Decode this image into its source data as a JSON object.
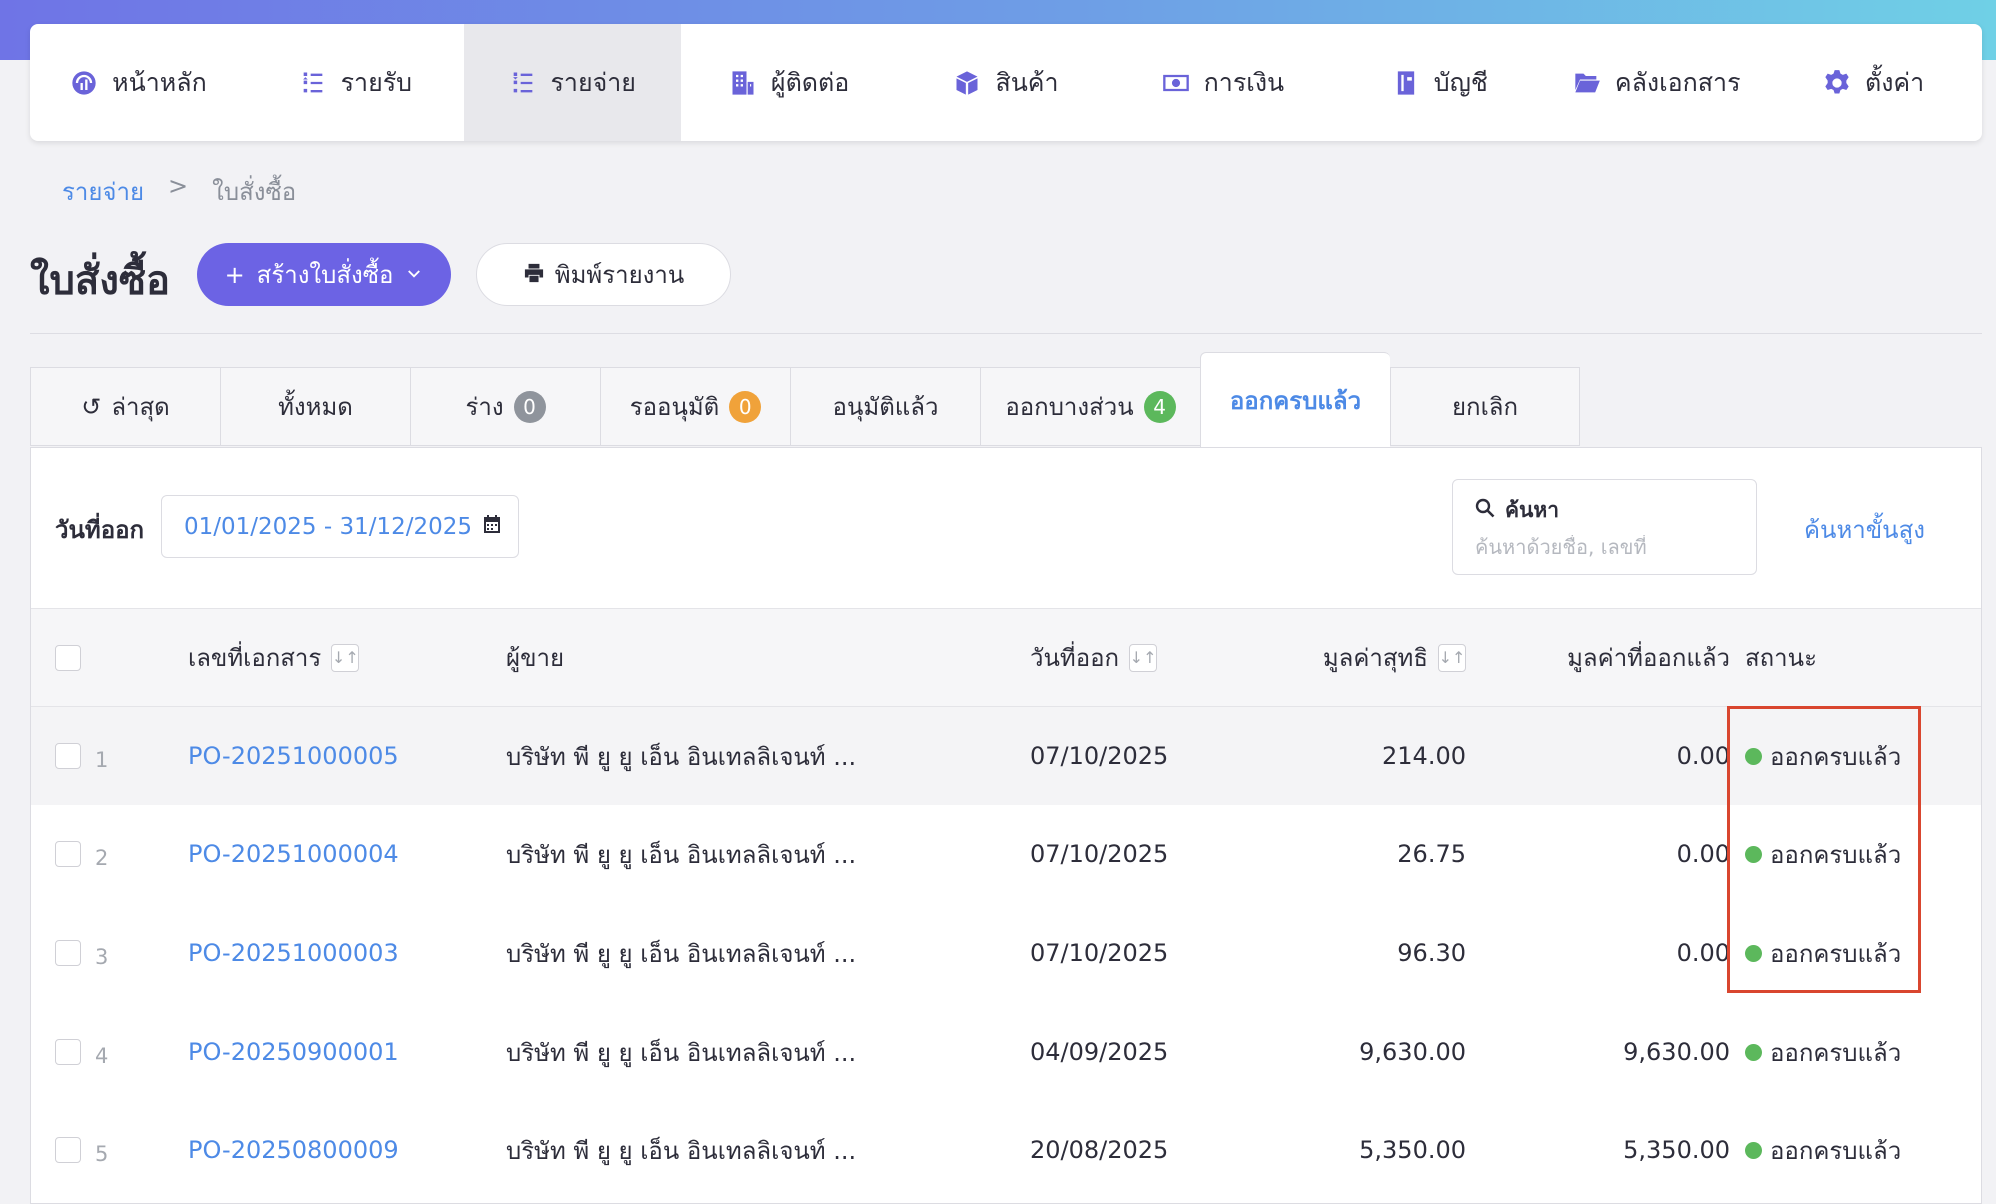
{
  "nav": {
    "items": [
      {
        "label": "หน้าหลัก",
        "icon": "dashboard-gauge-icon"
      },
      {
        "label": "รายรับ",
        "icon": "income-list-icon"
      },
      {
        "label": "รายจ่าย",
        "icon": "expense-list-icon"
      },
      {
        "label": "ผู้ติดต่อ",
        "icon": "contacts-building-icon"
      },
      {
        "label": "สินค้า",
        "icon": "product-box-icon"
      },
      {
        "label": "การเงิน",
        "icon": "money-bill-icon"
      },
      {
        "label": "บัญชี",
        "icon": "account-book-icon"
      },
      {
        "label": "คลังเอกสาร",
        "icon": "folder-open-icon"
      },
      {
        "label": "ตั้งค่า",
        "icon": "gear-icon"
      }
    ],
    "active_index": 2
  },
  "breadcrumb": {
    "parent": "รายจ่าย",
    "separator": ">",
    "current": "ใบสั่งซื้อ"
  },
  "page": {
    "title": "ใบสั่งซื้อ"
  },
  "actions": {
    "create_label": "สร้างใบสั่งซื้อ",
    "print_label": "พิมพ์รายงาน"
  },
  "tabs": [
    {
      "label": "ล่าสุด",
      "icon": "history-icon"
    },
    {
      "label": "ทั้งหมด"
    },
    {
      "label": "ร่าง",
      "badge": "0",
      "badge_color": "#8f949c"
    },
    {
      "label": "รออนุมัติ",
      "badge": "0",
      "badge_color": "#f0a23a"
    },
    {
      "label": "อนุมัติแล้ว"
    },
    {
      "label": "ออกบางส่วน",
      "badge": "4",
      "badge_color": "#5cb85c"
    },
    {
      "label": "ออกครบแล้ว",
      "active": true
    },
    {
      "label": "ยกเลิก"
    }
  ],
  "filters": {
    "date_label": "วันที่ออก",
    "date_range": "01/01/2025 - 31/12/2025",
    "search_label": "ค้นหา",
    "search_placeholder": "ค้นหาด้วยชื่อ, เลขที่",
    "advanced_search": "ค้นหาขั้นสูง"
  },
  "table": {
    "headers": {
      "doc_no": "เลขที่เอกสาร",
      "vendor": "ผู้ขาย",
      "issue_date": "วันที่ออก",
      "net_value": "มูลค่าสุทธิ",
      "issued_value": "มูลค่าที่ออกแล้ว",
      "status": "สถานะ"
    },
    "rows": [
      {
        "index": "1",
        "doc_no": "PO-20251000005",
        "vendor": "บริษัท พี ยู ยู เอ็น อินเทลลิเจนท์ ...",
        "issue_date": "07/10/2025",
        "net_value": "214.00",
        "issued_value": "0.00",
        "status": "ออกครบแล้ว"
      },
      {
        "index": "2",
        "doc_no": "PO-20251000004",
        "vendor": "บริษัท พี ยู ยู เอ็น อินเทลลิเจนท์ ...",
        "issue_date": "07/10/2025",
        "net_value": "26.75",
        "issued_value": "0.00",
        "status": "ออกครบแล้ว"
      },
      {
        "index": "3",
        "doc_no": "PO-20251000003",
        "vendor": "บริษัท พี ยู ยู เอ็น อินเทลลิเจนท์ ...",
        "issue_date": "07/10/2025",
        "net_value": "96.30",
        "issued_value": "0.00",
        "status": "ออกครบแล้ว"
      },
      {
        "index": "4",
        "doc_no": "PO-20250900001",
        "vendor": "บริษัท พี ยู ยู เอ็น อินเทลลิเจนท์ ...",
        "issue_date": "04/09/2025",
        "net_value": "9,630.00",
        "issued_value": "9,630.00",
        "status": "ออกครบแล้ว"
      },
      {
        "index": "5",
        "doc_no": "PO-20250800009",
        "vendor": "บริษัท พี ยู ยู เอ็น อินเทลลิเจนท์ ...",
        "issue_date": "20/08/2025",
        "net_value": "5,350.00",
        "issued_value": "5,350.00",
        "status": "ออกครบแล้ว"
      }
    ]
  },
  "colors": {
    "accent": "#6c63e4",
    "link": "#4d8ae6",
    "status_complete": "#5cb85c",
    "annotation": "#d9462f"
  }
}
